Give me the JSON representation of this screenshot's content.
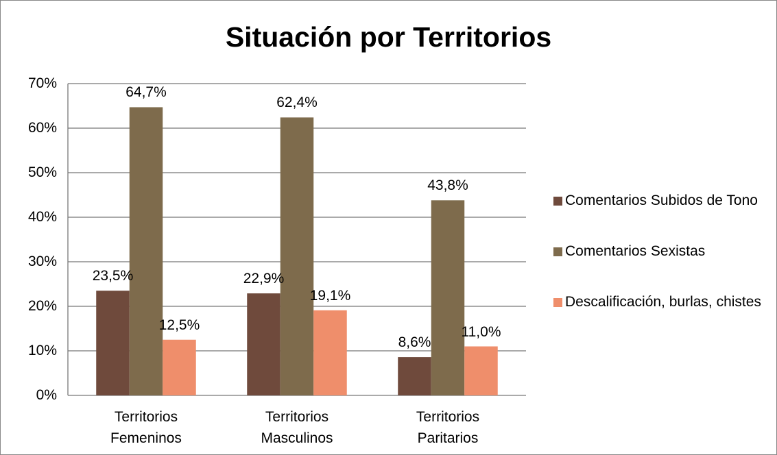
{
  "chart_data": {
    "type": "bar",
    "title": "Situación por Territorios",
    "categories": [
      "Territorios Femeninos",
      "Territorios Masculinos",
      "Territorios Paritarios"
    ],
    "series": [
      {
        "name": "Comentarios Subidos de Tono",
        "color": "#6f4a3c",
        "values": [
          23.5,
          22.9,
          8.6
        ],
        "value_labels": [
          "23,5%",
          "22,9%",
          "8,6%"
        ]
      },
      {
        "name": "Comentarios Sexistas",
        "color": "#7e6b4c",
        "values": [
          64.7,
          62.4,
          43.8
        ],
        "value_labels": [
          "64,7%",
          "62,4%",
          "43,8%"
        ]
      },
      {
        "name": "Descalificación, burlas, chistes",
        "color": "#ef8e6b",
        "values": [
          12.5,
          19.1,
          11.0
        ],
        "value_labels": [
          "12,5%",
          "19,1%",
          "11,0%"
        ]
      }
    ],
    "ylim": [
      0,
      70
    ],
    "yticks": [
      {
        "value": 0,
        "label": "0%"
      },
      {
        "value": 10,
        "label": "10%"
      },
      {
        "value": 20,
        "label": "20%"
      },
      {
        "value": 30,
        "label": "30%"
      },
      {
        "value": 40,
        "label": "40%"
      },
      {
        "value": 50,
        "label": "50%"
      },
      {
        "value": 60,
        "label": "60%"
      },
      {
        "value": 70,
        "label": "70%"
      }
    ],
    "grid": true,
    "legend": "right"
  }
}
